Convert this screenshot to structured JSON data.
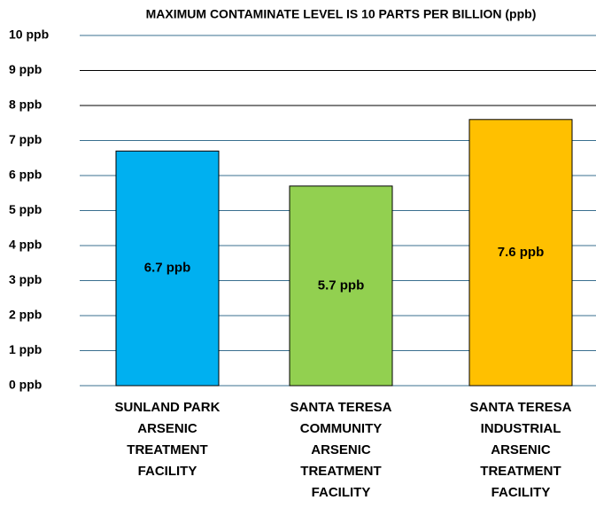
{
  "chart_data": {
    "type": "bar",
    "title": "MAXIMUM CONTAMINATE LEVEL IS 10 PARTS PER BILLION (ppb)",
    "categories": [
      "SUNLAND PARK ARSENIC TREATMENT FACILITY",
      "SANTA TERESA COMMUNITY ARSENIC TREATMENT FACILITY",
      "SANTA TERESA INDUSTRIAL ARSENIC TREATMENT FACILITY"
    ],
    "values": [
      6.7,
      5.7,
      7.6
    ],
    "value_labels": [
      "6.7 ppb",
      "5.7 ppb",
      "7.6 ppb"
    ],
    "colors": [
      "#00b0f0",
      "#92d050",
      "#ffc000"
    ],
    "ylim": [
      0,
      10
    ],
    "yticks": [
      {
        "value": 0,
        "label": "0 ppb"
      },
      {
        "value": 1,
        "label": "1 ppb"
      },
      {
        "value": 2,
        "label": "2 ppb"
      },
      {
        "value": 3,
        "label": "3 ppb"
      },
      {
        "value": 4,
        "label": "4 ppb"
      },
      {
        "value": 5,
        "label": "5 ppb"
      },
      {
        "value": 6,
        "label": "6 ppb"
      },
      {
        "value": 7,
        "label": "7 ppb"
      },
      {
        "value": 8,
        "label": "8 ppb"
      },
      {
        "value": 9,
        "label": "9 ppb"
      },
      {
        "value": 10,
        "label": "10 ppb"
      }
    ],
    "grid": true
  }
}
